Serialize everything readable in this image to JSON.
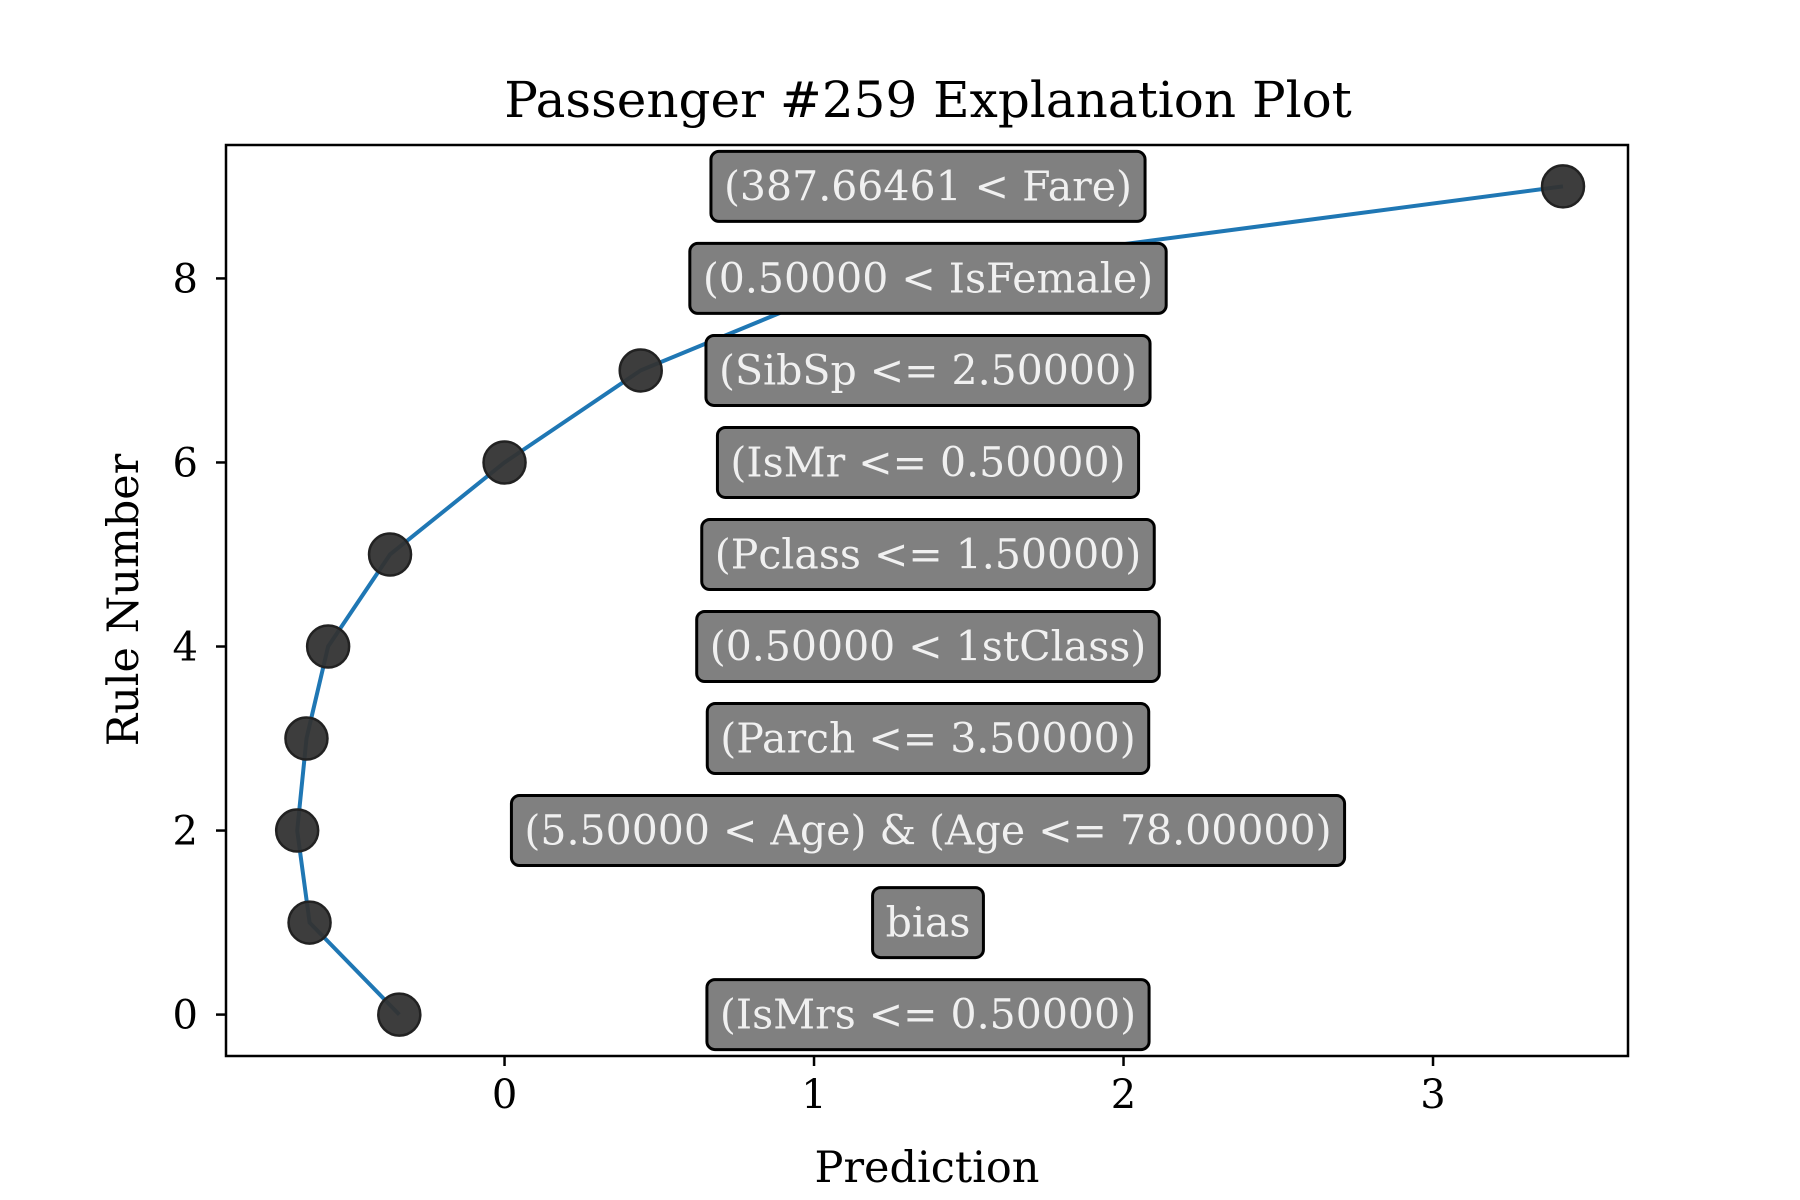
{
  "chart_data": {
    "type": "line",
    "title": "Passenger #259 Explanation Plot",
    "xlabel": "Prediction",
    "ylabel": "Rule Number",
    "xlim": [
      -0.9,
      3.63
    ],
    "ylim": [
      -0.45,
      9.45
    ],
    "xticks": [
      0,
      1,
      2,
      3
    ],
    "yticks": [
      0,
      2,
      4,
      6,
      8
    ],
    "series": [
      {
        "x": [
          -0.34,
          -0.63,
          -0.67,
          -0.64,
          -0.57,
          -0.37,
          0.0,
          0.44,
          1.16,
          3.42
        ],
        "y": [
          0,
          1,
          2,
          3,
          4,
          5,
          6,
          7,
          8,
          9
        ],
        "color": "#1f77b4",
        "marker_color": "#333333"
      }
    ],
    "rule_labels": [
      "(IsMrs <= 0.50000)",
      "bias",
      "(5.50000 < Age) & (Age <= 78.00000)",
      "(Parch <= 3.50000)",
      "(0.50000 < 1stClass)",
      "(Pclass <= 1.50000)",
      "(IsMr <= 0.50000)",
      "(SibSp <= 2.50000)",
      "(0.50000 < IsFemale)",
      "(387.66461 < Fare)"
    ],
    "grid": false,
    "legend": "none"
  }
}
